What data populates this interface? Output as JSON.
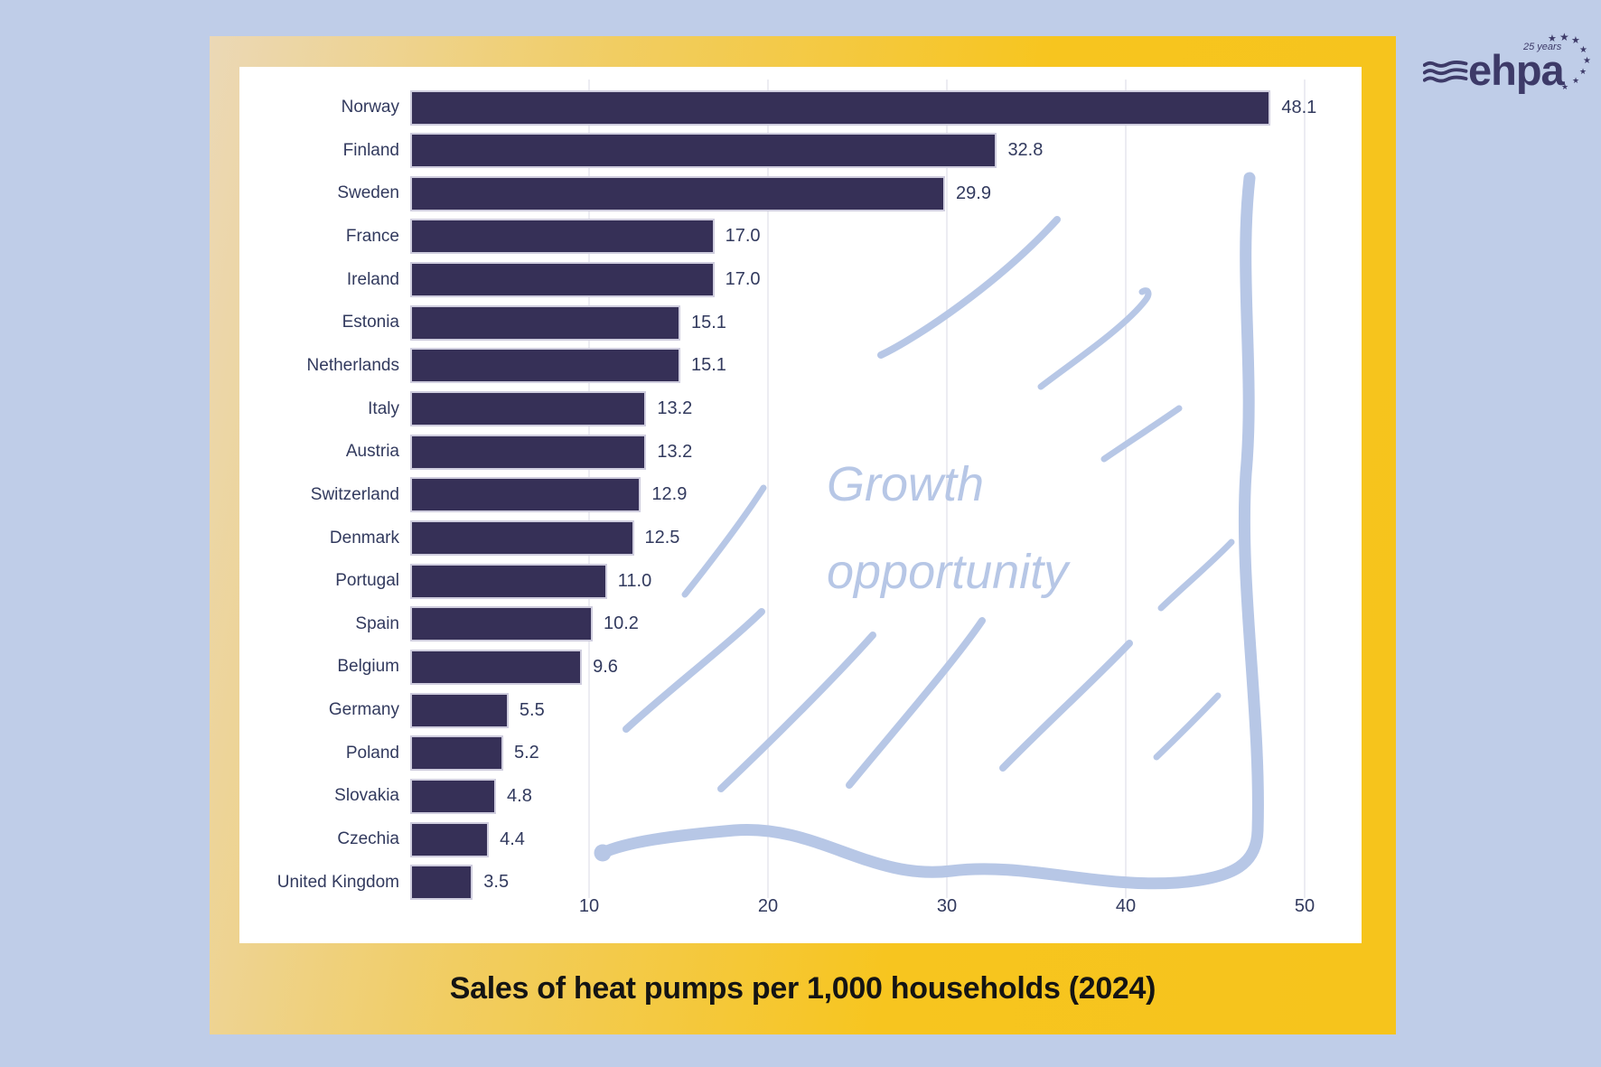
{
  "page": {
    "background": "#bfcde8"
  },
  "logo": {
    "brand": "ehpa",
    "tagline": "25 years",
    "color": "#3d3a68"
  },
  "card": {
    "title": "Sales of heat pumps per 1,000 households (2024)",
    "gradient_from": "#ebd8b6",
    "gradient_to": "#f6c41c"
  },
  "chart_data": {
    "type": "bar",
    "orientation": "horizontal",
    "title": "Sales of heat pumps per 1,000 households (2024)",
    "categories": [
      "Norway",
      "Finland",
      "Sweden",
      "France",
      "Ireland",
      "Estonia",
      "Netherlands",
      "Italy",
      "Austria",
      "Switzerland",
      "Denmark",
      "Portugal",
      "Spain",
      "Belgium",
      "Germany",
      "Poland",
      "Slovakia",
      "Czechia",
      "United Kingdom"
    ],
    "values": [
      48.1,
      32.8,
      29.9,
      17.0,
      17.0,
      15.1,
      15.1,
      13.2,
      13.2,
      12.9,
      12.5,
      11.0,
      10.2,
      9.6,
      5.5,
      5.2,
      4.8,
      4.4,
      3.5
    ],
    "value_labels": [
      "48.1",
      "32.8",
      "29.9",
      "17.0",
      "17.0",
      "15.1",
      "15.1",
      "13.2",
      "13.2",
      "12.9",
      "12.5",
      "11.0",
      "10.2",
      "9.6",
      "5.5",
      "5.2",
      "4.8",
      "4.4",
      "3.5"
    ],
    "xticks": [
      10,
      20,
      30,
      40,
      50
    ],
    "xlim": [
      0,
      53
    ],
    "grid": true,
    "gridline_color": "#ececf2",
    "bar_color": "#363057",
    "label_color": "#323a5e",
    "watermark": {
      "line1": "Growth",
      "line2": "opportunity",
      "color": "#b7c7e6"
    },
    "annotation_color": "#b7c7e6",
    "annotation_note": "hand-drawn highlight lasso and hatch strokes over empty growth area"
  }
}
